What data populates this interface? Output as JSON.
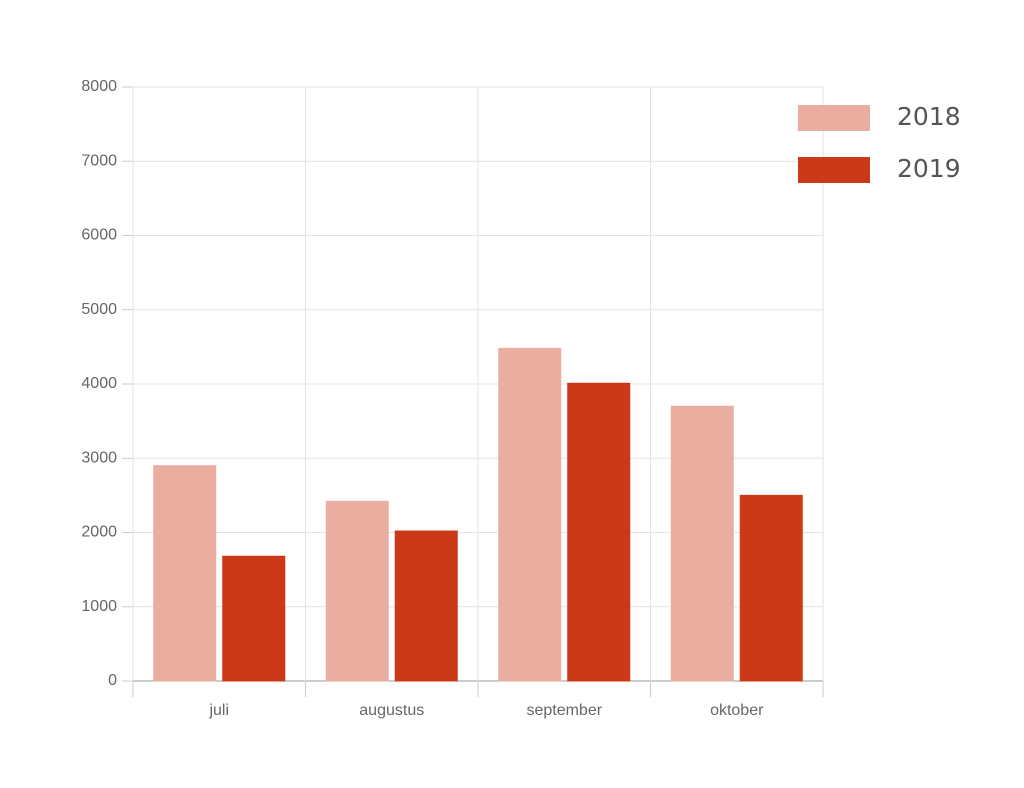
{
  "chart_data": {
    "type": "bar",
    "categories": [
      "juli",
      "augustus",
      "september",
      "oktober"
    ],
    "series": [
      {
        "name": "2018",
        "color": "#eaaea1",
        "values": [
          2900,
          2420,
          4480,
          3700
        ]
      },
      {
        "name": "2019",
        "color": "#cc3916",
        "values": [
          1680,
          2020,
          4010,
          2500
        ]
      }
    ],
    "ylim": [
      0,
      8000
    ],
    "yticks": [
      0,
      1000,
      2000,
      3000,
      4000,
      5000,
      6000,
      7000,
      8000
    ],
    "grid": true,
    "legend": "top-right"
  }
}
